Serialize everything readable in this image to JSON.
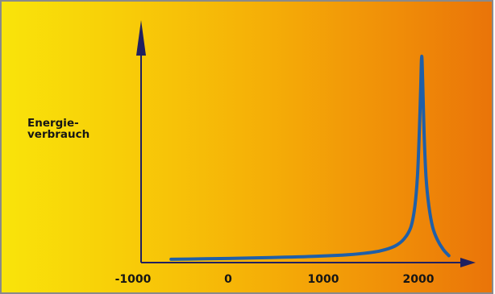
{
  "chart_data": {
    "type": "line",
    "title": "",
    "xlabel": "",
    "ylabel": "Energie-\nverbrauch",
    "ylabel_lines": [
      "Energie-",
      "verbrauch"
    ],
    "xlim": [
      -1300,
      2450
    ],
    "ylim": [
      0,
      100
    ],
    "x_ticks": [
      -1000,
      0,
      1000,
      2000
    ],
    "x_tick_labels": [
      "-1000",
      "0",
      "1000",
      "2000"
    ],
    "grid": false,
    "series": [
      {
        "color": "#1f5fa8",
        "x": [
          -600,
          -300,
          0,
          300,
          600,
          900,
          1200,
          1400,
          1600,
          1750,
          1850,
          1920,
          1960,
          1990,
          2010,
          2025,
          2035,
          2045,
          2060,
          2080,
          2110,
          2150,
          2200,
          2260,
          2320
        ],
        "y": [
          0.8,
          1.0,
          1.2,
          1.5,
          1.8,
          2.2,
          2.8,
          3.5,
          4.8,
          7.0,
          10.5,
          16.0,
          25.0,
          40.0,
          62.0,
          84.0,
          97.0,
          85.0,
          60.0,
          40.0,
          26.0,
          16.0,
          10.0,
          5.5,
          2.5
        ]
      }
    ]
  },
  "colors": {
    "background_left": "#f9e40a",
    "background_right": "#ea7409",
    "axis": "#202060",
    "line": "#1f5fa8"
  }
}
